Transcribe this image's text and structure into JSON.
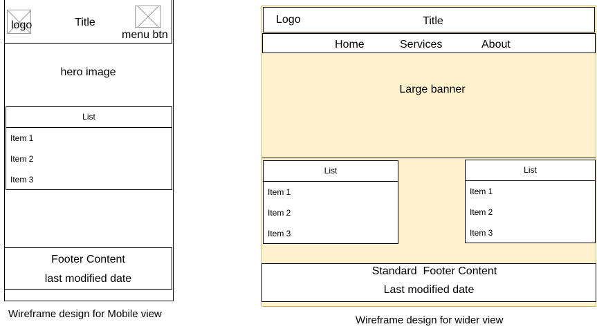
{
  "mobile": {
    "logo": "logo",
    "title": "Title",
    "menu_btn": "menu btn",
    "hero": "hero image",
    "list": {
      "header": "List",
      "items": [
        "Item 1",
        "Item 2",
        "Item 3"
      ]
    },
    "footer": {
      "line1": "Footer Content",
      "line2": "last modified date"
    },
    "caption": "Wireframe design for Mobile view"
  },
  "wide": {
    "logo": "Logo",
    "title": "Title",
    "nav": [
      "Home",
      "Services",
      "About"
    ],
    "banner": "Large banner",
    "list_left": {
      "header": "List",
      "items": [
        "Item 1",
        "Item 2",
        "Item 3"
      ]
    },
    "list_right": {
      "header": "List",
      "items": [
        "Item 1",
        "Item 2",
        "Item 3"
      ]
    },
    "footer": {
      "line1": "Standard  Footer Content",
      "line2": "Last modified date"
    },
    "caption": "Wireframe design for wider view",
    "colors": {
      "panel_fill": "#fff2cc",
      "panel_border": "#d6b656"
    }
  }
}
